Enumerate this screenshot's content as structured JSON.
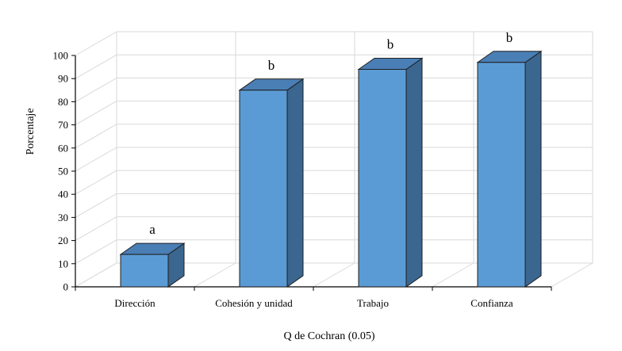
{
  "chart_data": {
    "type": "bar",
    "categories": [
      "Dirección",
      "Cohesión y unidad",
      "Trabajo",
      "Confianza"
    ],
    "values": [
      14,
      85,
      94,
      97
    ],
    "annotations": [
      "a",
      "b",
      "b",
      "b"
    ],
    "xlabel": "Q de Cochran (0.05)",
    "ylabel": "Porcentaje",
    "ylim": [
      0,
      100
    ],
    "yticks": [
      "0",
      "10",
      "20",
      "30",
      "40",
      "50",
      "60",
      "70",
      "80",
      "90",
      "100"
    ],
    "grid": true,
    "style": "3d-bar",
    "colors": {
      "bar_front": "#5b9bd5",
      "bar_top": "#4a7fb5",
      "bar_side": "#3a6690",
      "bar_edge": "#1f1f1f",
      "grid": "#d9d9d9",
      "axis": "#000000"
    }
  }
}
